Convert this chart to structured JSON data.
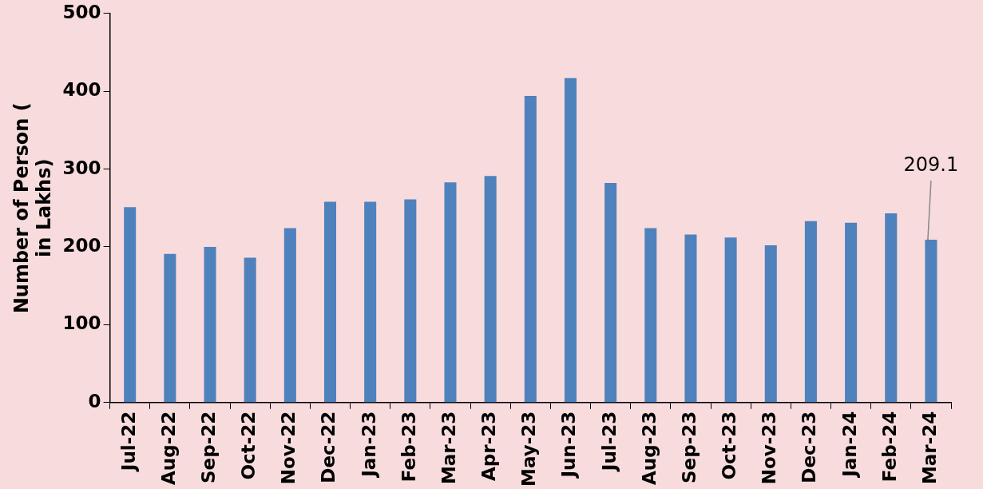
{
  "chart_data": {
    "type": "bar",
    "ylabel": "Number of Person (in Lakhs)",
    "categories": [
      "Jul-22",
      "Aug-22",
      "Sep-22",
      "Oct-22",
      "Nov-22",
      "Dec-22",
      "Jan-23",
      "Feb-23",
      "Mar-23",
      "Apr-23",
      "May-23",
      "Jun-23",
      "Jul-23",
      "Aug-23",
      "Sep-23",
      "Oct-23",
      "Nov-23",
      "Dec-23",
      "Jan-24",
      "Feb-24",
      "Mar-24"
    ],
    "values": [
      251,
      191,
      200,
      186,
      224,
      258,
      258,
      261,
      283,
      291,
      394,
      417,
      282,
      224,
      216,
      212,
      202,
      233,
      231,
      243,
      209.1
    ],
    "value_labels": [
      null,
      null,
      null,
      null,
      null,
      null,
      null,
      null,
      null,
      null,
      null,
      null,
      null,
      null,
      null,
      null,
      null,
      null,
      null,
      null,
      "209.1"
    ],
    "color": "#4f81bd",
    "ylim": [
      0,
      500
    ],
    "yticks": [
      0,
      100,
      200,
      300,
      400,
      500
    ],
    "grid": false,
    "legend": false
  }
}
